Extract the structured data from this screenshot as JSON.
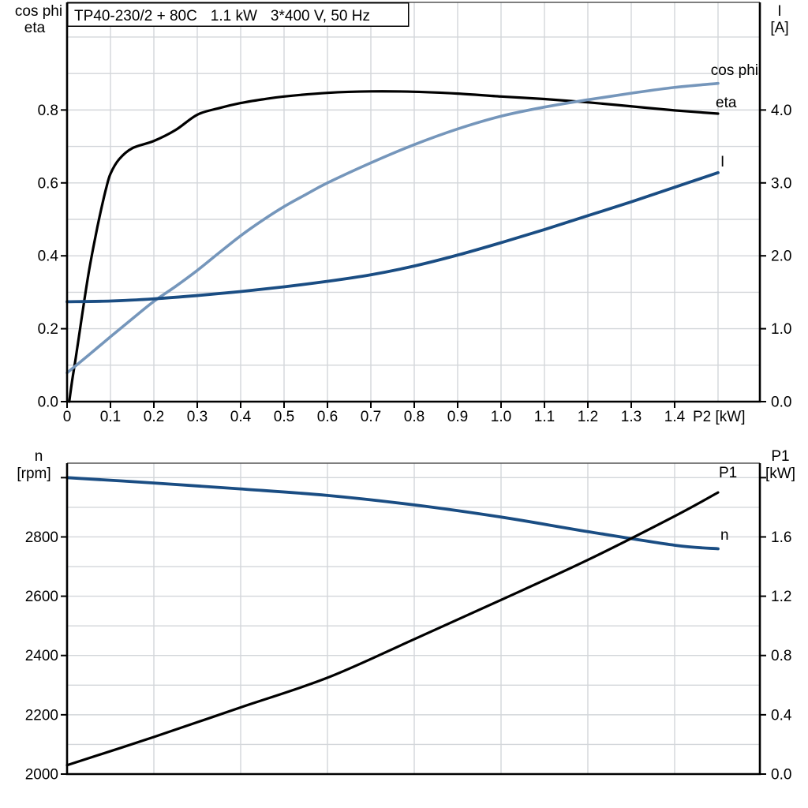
{
  "title": {
    "model": "TP40-230/2 + 80C",
    "power": "1.1 kW",
    "supply": "3*400 V, 50 Hz"
  },
  "colors": {
    "black": "#000000",
    "light_blue": "#7596bb",
    "dark_blue": "#1a4d83",
    "grid": "#d3d6da",
    "border": "#555555",
    "bg": "#ffffff"
  },
  "top_chart": {
    "y_left_header_1": "cos phi",
    "y_left_header_2": "eta",
    "y_right_header_1": "I",
    "y_right_header_2": "[A]",
    "x_axis_label": "P2 [kW]",
    "curve_label_cos_phi": "cos phi",
    "curve_label_eta": "eta",
    "curve_label_current": "I"
  },
  "bottom_chart": {
    "y_left_header_1": "n",
    "y_left_header_2": "[rpm]",
    "y_right_header_1": "P1",
    "y_right_header_2": "[kW]",
    "curve_label_p1": "P1",
    "curve_label_n": "n"
  },
  "chart_data": [
    {
      "type": "line",
      "title": "Motor curves: cos phi, eta (left axis) and current I [A] (right axis) versus shaft power P2 [kW]",
      "xlabel": "P2 [kW]",
      "ylabel_left": "cos phi / eta",
      "ylabel_right": "I [A]",
      "xlim": [
        0,
        1.5964
      ],
      "ylim_left": [
        0,
        1.0952
      ],
      "ylim_right": [
        0,
        5.476
      ],
      "grid": true,
      "x_grid": [
        0.1,
        0.2,
        0.3,
        0.4,
        0.5,
        0.6,
        0.7,
        0.8,
        0.9,
        1.0,
        1.1,
        1.2,
        1.3,
        1.4,
        1.5
      ],
      "y_grid_left": [
        0.1,
        0.2,
        0.3,
        0.4,
        0.5,
        0.6,
        0.7,
        0.8,
        0.9,
        1.0
      ],
      "x_ticks": {
        "values": [
          0,
          0.1,
          0.2,
          0.3,
          0.4,
          0.5,
          0.6,
          0.7,
          0.8,
          0.9,
          1.0,
          1.1,
          1.2,
          1.3,
          1.4
        ],
        "labels": [
          "0",
          "0.1",
          "0.2",
          "0.3",
          "0.4",
          "0.5",
          "0.6",
          "0.7",
          "0.8",
          "0.9",
          "1.0",
          "1.1",
          "1.2",
          "1.3",
          "1.4"
        ]
      },
      "yl_ticks": {
        "values": [
          0,
          0.2,
          0.4,
          0.6,
          0.8
        ],
        "labels": [
          "0.0",
          "0.2",
          "0.4",
          "0.6",
          "0.8"
        ]
      },
      "yr_ticks": {
        "values": [
          0,
          1,
          2,
          3,
          4
        ],
        "labels": [
          "0.0",
          "1.0",
          "2.0",
          "3.0",
          "4.0"
        ]
      },
      "series": [
        {
          "name": "eta",
          "axis": "left",
          "color": "black",
          "width": 3.2,
          "points": [
            [
              0.005,
              0
            ],
            [
              0.012,
              0.06
            ],
            [
              0.02,
              0.12
            ],
            [
              0.03,
              0.2
            ],
            [
              0.04,
              0.28
            ],
            [
              0.05,
              0.355
            ],
            [
              0.06,
              0.42
            ],
            [
              0.07,
              0.48
            ],
            [
              0.08,
              0.535
            ],
            [
              0.09,
              0.585
            ],
            [
              0.1,
              0.625
            ],
            [
              0.12,
              0.665
            ],
            [
              0.15,
              0.695
            ],
            [
              0.2,
              0.715
            ],
            [
              0.25,
              0.745
            ],
            [
              0.3,
              0.787
            ],
            [
              0.35,
              0.805
            ],
            [
              0.4,
              0.819
            ],
            [
              0.45,
              0.829
            ],
            [
              0.5,
              0.837
            ],
            [
              0.6,
              0.847
            ],
            [
              0.7,
              0.851
            ],
            [
              0.8,
              0.85
            ],
            [
              0.9,
              0.845
            ],
            [
              1.0,
              0.837
            ],
            [
              1.1,
              0.83
            ],
            [
              1.2,
              0.821
            ],
            [
              1.3,
              0.81
            ],
            [
              1.4,
              0.799
            ],
            [
              1.5,
              0.79
            ]
          ]
        },
        {
          "name": "cos phi",
          "axis": "left",
          "color": "light_blue",
          "width": 3.6,
          "points": [
            [
              0,
              0.079
            ],
            [
              0.05,
              0.128
            ],
            [
              0.1,
              0.178
            ],
            [
              0.15,
              0.227
            ],
            [
              0.2,
              0.275
            ],
            [
              0.25,
              0.316
            ],
            [
              0.3,
              0.36
            ],
            [
              0.35,
              0.408
            ],
            [
              0.4,
              0.455
            ],
            [
              0.45,
              0.497
            ],
            [
              0.5,
              0.535
            ],
            [
              0.55,
              0.568
            ],
            [
              0.6,
              0.6
            ],
            [
              0.7,
              0.655
            ],
            [
              0.8,
              0.705
            ],
            [
              0.9,
              0.748
            ],
            [
              1.0,
              0.783
            ],
            [
              1.1,
              0.808
            ],
            [
              1.2,
              0.828
            ],
            [
              1.3,
              0.846
            ],
            [
              1.4,
              0.862
            ],
            [
              1.5,
              0.873
            ]
          ]
        },
        {
          "name": "I",
          "axis": "right",
          "color": "dark_blue",
          "width": 3.8,
          "points": [
            [
              0,
              1.37
            ],
            [
              0.1,
              1.38
            ],
            [
              0.2,
              1.41
            ],
            [
              0.3,
              1.455
            ],
            [
              0.4,
              1.51
            ],
            [
              0.5,
              1.575
            ],
            [
              0.6,
              1.65
            ],
            [
              0.7,
              1.74
            ],
            [
              0.8,
              1.86
            ],
            [
              0.9,
              2.01
            ],
            [
              1.0,
              2.18
            ],
            [
              1.1,
              2.36
            ],
            [
              1.2,
              2.55
            ],
            [
              1.3,
              2.74
            ],
            [
              1.4,
              2.94
            ],
            [
              1.5,
              3.14
            ]
          ]
        }
      ]
    },
    {
      "type": "line",
      "title": "Motor curves: speed n [rpm] (left axis) and input power P1 [kW] (right axis) versus shaft power P2 [kW]",
      "xlabel": "P2 [kW]",
      "ylabel_left": "n [rpm]",
      "ylabel_right": "P1 [kW]",
      "xlim": [
        0,
        1.5964
      ],
      "ylim_left": [
        2000,
        3048.8
      ],
      "ylim_right": [
        0,
        2.0976
      ],
      "grid": true,
      "x_grid": [
        0.2,
        0.4,
        0.6,
        0.8,
        1.0,
        1.2,
        1.4
      ],
      "y_grid_left": [
        2100,
        2200,
        2300,
        2400,
        2500,
        2600,
        2700,
        2800,
        2900,
        3000
      ],
      "x_ticks": {
        "values": [],
        "labels": []
      },
      "yl_ticks": {
        "values": [
          2000,
          2200,
          2400,
          2600,
          2800,
          3000
        ],
        "labels": [
          "2000",
          "2200",
          "2400",
          "2600",
          "2800",
          ""
        ]
      },
      "yr_ticks": {
        "values": [
          0,
          0.4,
          0.8,
          1.2,
          1.6,
          2.0
        ],
        "labels": [
          "0.0",
          "0.4",
          "0.8",
          "1.2",
          "1.6",
          ""
        ]
      },
      "series": [
        {
          "name": "n",
          "axis": "left",
          "color": "dark_blue",
          "width": 3.8,
          "points": [
            [
              0,
              3000
            ],
            [
              0.2,
              2982
            ],
            [
              0.4,
              2962
            ],
            [
              0.6,
              2940
            ],
            [
              0.8,
              2908
            ],
            [
              1.0,
              2867
            ],
            [
              1.2,
              2818
            ],
            [
              1.4,
              2772
            ],
            [
              1.5,
              2760
            ]
          ]
        },
        {
          "name": "P1",
          "axis": "right",
          "color": "black",
          "width": 3.2,
          "points": [
            [
              0,
              0.06
            ],
            [
              0.2,
              0.25
            ],
            [
              0.4,
              0.45
            ],
            [
              0.6,
              0.65
            ],
            [
              0.8,
              0.91
            ],
            [
              1.0,
              1.175
            ],
            [
              1.2,
              1.445
            ],
            [
              1.4,
              1.74
            ],
            [
              1.5,
              1.9
            ]
          ]
        }
      ]
    }
  ]
}
